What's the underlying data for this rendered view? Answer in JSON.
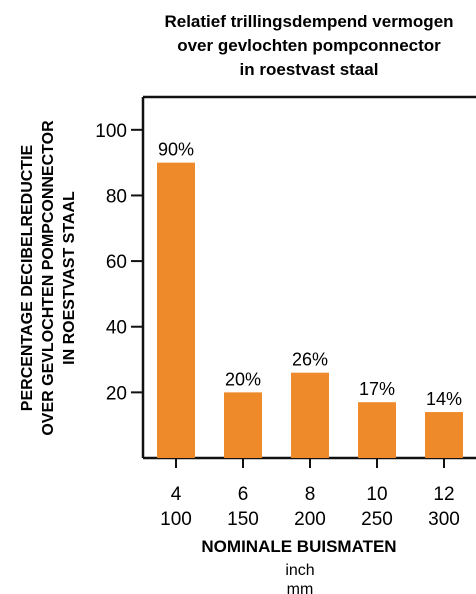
{
  "chart_data": {
    "type": "bar",
    "title": [
      "Relatief trillingsdempend vermogen",
      "over gevlochten pompconnector",
      "in roestvast staal"
    ],
    "ylabel": [
      "PERCENTAGE DECIBELREDUCTIE",
      "OVER GEVLOCHTEN POMPCONNECTOR",
      "IN ROESTVAST STAAL"
    ],
    "xlabel": "NOMINALE BUISMATEN",
    "x_units": [
      "inch",
      "mm"
    ],
    "categories": [
      {
        "inch": "4",
        "mm": "100"
      },
      {
        "inch": "6",
        "mm": "150"
      },
      {
        "inch": "8",
        "mm": "200"
      },
      {
        "inch": "10",
        "mm": "250"
      },
      {
        "inch": "12",
        "mm": "300"
      }
    ],
    "values": [
      90,
      20,
      26,
      17,
      14
    ],
    "value_labels": [
      "90%",
      "20%",
      "26%",
      "17%",
      "14%"
    ],
    "yticks": [
      20,
      40,
      60,
      80,
      100
    ],
    "ylim": [
      0,
      110
    ],
    "grid": false,
    "bar_color": "#ee8a2a"
  }
}
